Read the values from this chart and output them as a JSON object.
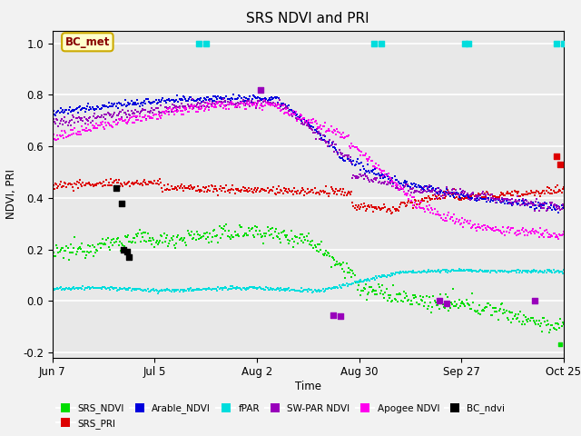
{
  "title": "SRS NDVI and PRI",
  "xlabel": "Time",
  "ylabel": "NDVI, PRI",
  "ylim": [
    -0.22,
    1.05
  ],
  "xlim_days": [
    0,
    140
  ],
  "xtick_labels": [
    "Jun 7",
    "Jul 5",
    "Aug 2",
    "Aug 30",
    "Sep 27",
    "Oct 25"
  ],
  "xtick_days": [
    0,
    28,
    56,
    84,
    112,
    140
  ],
  "yticks": [
    -0.2,
    0.0,
    0.2,
    0.4,
    0.6,
    0.8,
    1.0
  ],
  "colors": {
    "SRS_NDVI": "#00dd00",
    "SRS_PRI": "#dd0000",
    "Arable_NDVI": "#0000dd",
    "fPAR": "#00dddd",
    "SW_PAR_NDVI": "#9900bb",
    "Apogee_NDVI": "#ff00ee",
    "BC_ndvi": "#000000"
  },
  "background_color": "#e8e8e8",
  "plot_bg": "#e8e8e8",
  "fig_bg": "#f2f2f2",
  "legend_box_facecolor": "#ffffcc",
  "legend_box_edgecolor": "#ccaa00",
  "bc_met_label": "BC_met",
  "grid_color": "#ffffff",
  "seed": 12345,
  "n_points": 500,
  "markersize": 1.8,
  "bc_markersize": 18
}
